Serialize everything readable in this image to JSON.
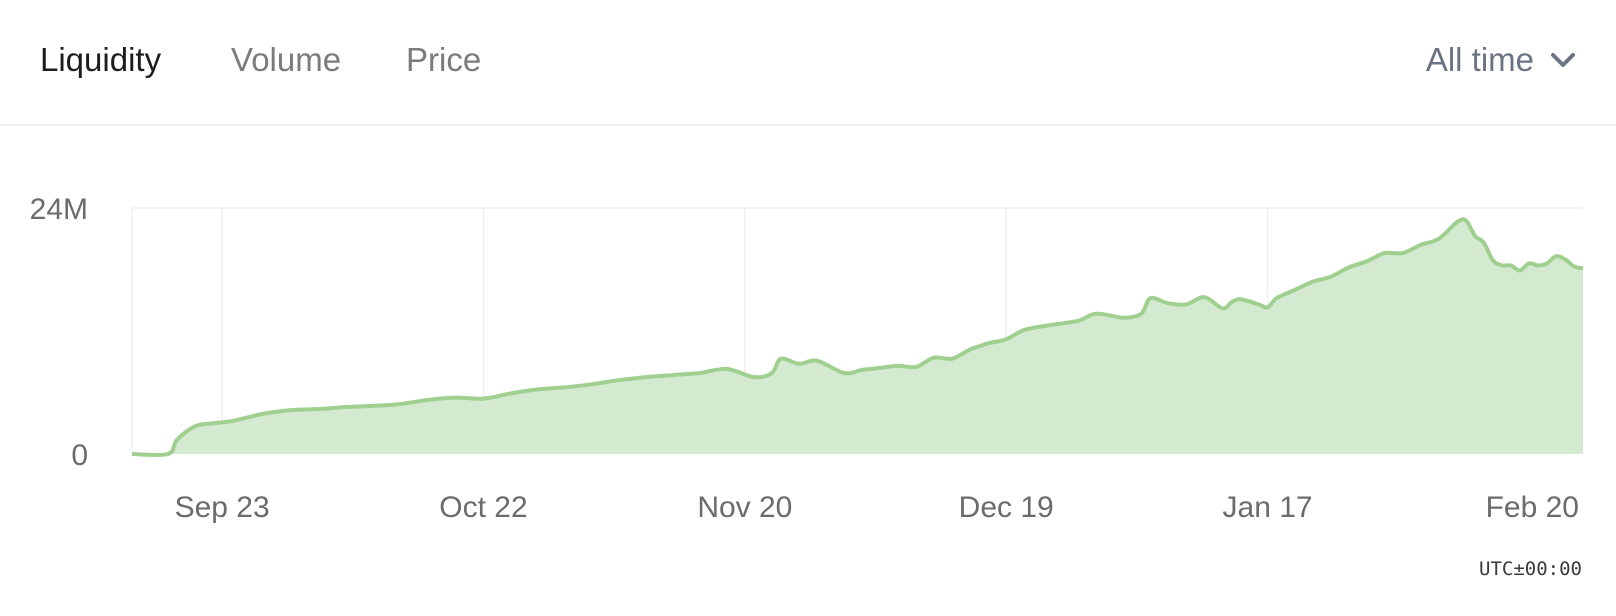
{
  "tabs": [
    {
      "label": "Liquidity",
      "active": true
    },
    {
      "label": "Volume",
      "active": false
    },
    {
      "label": "Price",
      "active": false
    }
  ],
  "range_select": {
    "label": "All time",
    "icon": "chevron-down-icon"
  },
  "timezone_label": "UTC±00:00",
  "colors": {
    "line": "#9fd08f",
    "area": "#d4ead0",
    "grid": "#efefef"
  },
  "chart_data": {
    "type": "area",
    "title": "",
    "xlabel": "",
    "ylabel": "",
    "x_ticks": [
      "Sep 23",
      "Oct 22",
      "Nov 20",
      "Dec 19",
      "Jan 17",
      "Feb 20"
    ],
    "y_ticks": [
      "0",
      "24M"
    ],
    "ylim": [
      0,
      24000000
    ],
    "xlim": [
      "2020-09-13",
      "2021-02-21"
    ],
    "grid": true,
    "series": [
      {
        "x": [
          "2020-09-13",
          "2020-09-17",
          "2020-09-18",
          "2020-09-20",
          "2020-09-22",
          "2020-09-24",
          "2020-09-26",
          "2020-09-28",
          "2020-10-01",
          "2020-10-04",
          "2020-10-07",
          "2020-10-10",
          "2020-10-13",
          "2020-10-16",
          "2020-10-19",
          "2020-10-22",
          "2020-10-25",
          "2020-10-28",
          "2020-10-31",
          "2020-11-03",
          "2020-11-06",
          "2020-11-09",
          "2020-11-12",
          "2020-11-15",
          "2020-11-18",
          "2020-11-21",
          "2020-11-23",
          "2020-11-24",
          "2020-11-26",
          "2020-11-28",
          "2020-12-01",
          "2020-12-03",
          "2020-12-05",
          "2020-12-07",
          "2020-12-09",
          "2020-12-11",
          "2020-12-13",
          "2020-12-15",
          "2020-12-16",
          "2020-12-17",
          "2020-12-19",
          "2020-12-21",
          "2020-12-24",
          "2020-12-27",
          "2020-12-29",
          "2021-01-01",
          "2021-01-03",
          "2021-01-04",
          "2021-01-06",
          "2021-01-08",
          "2021-01-10",
          "2021-01-12",
          "2021-01-13",
          "2021-01-14",
          "2021-01-16",
          "2021-01-17",
          "2021-01-18",
          "2021-01-20",
          "2021-01-22",
          "2021-01-24",
          "2021-01-26",
          "2021-01-28",
          "2021-01-30",
          "2021-02-01",
          "2021-02-03",
          "2021-02-05",
          "2021-02-07",
          "2021-02-08",
          "2021-02-09",
          "2021-02-10",
          "2021-02-11",
          "2021-02-12",
          "2021-02-13",
          "2021-02-14",
          "2021-02-15",
          "2021-02-16",
          "2021-02-17",
          "2021-02-18",
          "2021-02-19",
          "2021-02-20",
          "2021-02-21"
        ],
        "values": [
          0,
          0,
          1400000,
          2700000,
          3000000,
          3200000,
          3600000,
          4000000,
          4300000,
          4400000,
          4600000,
          4700000,
          4900000,
          5300000,
          5500000,
          5400000,
          5900000,
          6300000,
          6500000,
          6800000,
          7200000,
          7500000,
          7700000,
          7900000,
          8300000,
          7500000,
          7900000,
          9300000,
          8800000,
          9100000,
          7900000,
          8200000,
          8400000,
          8600000,
          8500000,
          9400000,
          9300000,
          10200000,
          10500000,
          10800000,
          11200000,
          12100000,
          12600000,
          13000000,
          13700000,
          13300000,
          13700000,
          15200000,
          14700000,
          14600000,
          15300000,
          14200000,
          14800000,
          15100000,
          14600000,
          14300000,
          15200000,
          16000000,
          16800000,
          17300000,
          18200000,
          18800000,
          19600000,
          19600000,
          20400000,
          21000000,
          22600000,
          22800000,
          21300000,
          20600000,
          18900000,
          18400000,
          18400000,
          17900000,
          18600000,
          18400000,
          18600000,
          19300000,
          19000000,
          18300000,
          18100000
        ]
      }
    ]
  }
}
